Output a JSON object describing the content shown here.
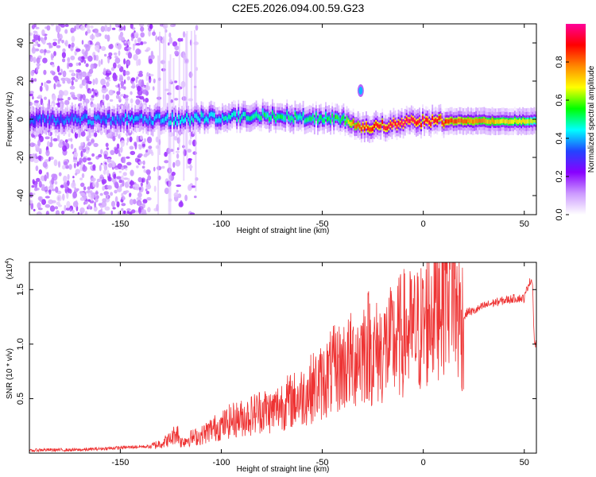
{
  "title": "C2E5.2026.094.00.59.G23",
  "chart_data": [
    {
      "type": "heatmap",
      "xlabel": "Height of straight line (km)",
      "ylabel": "Frequency (Hz)",
      "xlim": [
        -195,
        56
      ],
      "ylim": [
        -50,
        50
      ],
      "xticks": [
        -150,
        -100,
        -50,
        0,
        50
      ],
      "yticks": [
        -40,
        -20,
        0,
        20,
        40
      ],
      "colorbar": {
        "label": "Normalized spectral amplitude",
        "range": [
          0,
          1
        ],
        "ticks": [
          "0.0",
          "0.2",
          "0.4",
          "0.6",
          "0.8"
        ],
        "colors": [
          "#ffffff",
          "#cc99ff",
          "#8800ff",
          "#2244ff",
          "#00ffff",
          "#00ff00",
          "#ffff00",
          "#ff8800",
          "#ff0000",
          "#ff0099"
        ]
      },
      "ridge": {
        "x": [
          -190,
          -135,
          -120,
          -100,
          -80,
          -60,
          -40,
          -35,
          -30,
          -20,
          -10,
          0,
          20,
          40,
          55
        ],
        "freq": [
          0,
          0,
          0,
          1,
          2,
          1,
          0,
          -3,
          -4,
          -3,
          -2,
          -1,
          -1,
          -1,
          -1
        ],
        "amplitude": [
          0.35,
          0.4,
          0.45,
          0.45,
          0.5,
          0.5,
          0.55,
          0.8,
          0.85,
          0.9,
          0.95,
          0.9,
          0.8,
          0.7,
          0.65
        ]
      },
      "spot": {
        "x": -31,
        "freq": 15,
        "amplitude": 0.4
      }
    },
    {
      "type": "line",
      "xlabel": "Height of straight line (km)",
      "ylabel": "SNR (10 * v/v)",
      "scale_label": "(x10",
      "scale_exp": "4",
      "scale_close": ")",
      "xlim": [
        -195,
        56
      ],
      "ylim": [
        0,
        1.75
      ],
      "xticks": [
        -150,
        -100,
        -50,
        0,
        50
      ],
      "yticks": [
        "0.5",
        "1.0",
        "1.5"
      ],
      "color": "#ee3333",
      "series": [
        {
          "x": [
            -195,
            -190,
            -180,
            -170,
            -160,
            -150,
            -140,
            -135,
            -130,
            -125,
            -122,
            -120,
            -115,
            -110,
            -105,
            -100,
            -95,
            -90,
            -85,
            -80,
            -75,
            -70,
            -65,
            -60,
            -55,
            -50,
            -45,
            -40,
            -35,
            -30,
            -27,
            -25,
            -20,
            -15,
            -10,
            -5,
            0,
            3,
            6,
            9,
            12,
            14,
            16,
            19,
            22,
            25,
            30,
            35,
            40,
            45,
            50,
            52,
            54,
            55
          ],
          "values": [
            0.02,
            0.03,
            0.03,
            0.03,
            0.04,
            0.05,
            0.06,
            0.06,
            0.09,
            0.13,
            0.2,
            0.1,
            0.14,
            0.16,
            0.22,
            0.25,
            0.3,
            0.32,
            0.35,
            0.4,
            0.38,
            0.45,
            0.48,
            0.52,
            0.6,
            0.65,
            0.75,
            0.8,
            0.85,
            0.95,
            1.0,
            0.9,
            0.95,
            1.0,
            1.1,
            1.1,
            1.15,
            1.3,
            1.4,
            1.55,
            1.65,
            1.75,
            1.35,
            1.2,
            1.3,
            1.3,
            1.35,
            1.38,
            1.4,
            1.42,
            1.42,
            1.55,
            1.6,
            1.0
          ]
        }
      ]
    }
  ]
}
